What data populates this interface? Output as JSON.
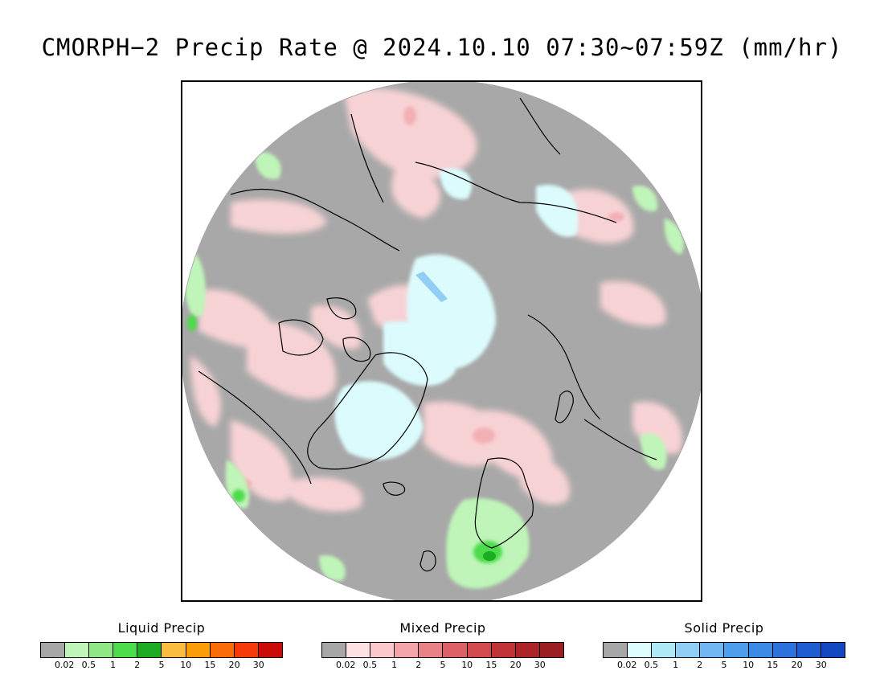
{
  "title": "CMORPH−2 Precip Rate @ 2024.10.10 07:30~07:59Z (mm/hr)",
  "map": {
    "projection": "north-polar-stereographic",
    "background_no_precip_color": "#a8a8a8",
    "coastline_color": "#000000"
  },
  "legends": [
    {
      "name": "Liquid Precip",
      "ticks": [
        "0.02",
        "0.5",
        "1",
        "2",
        "5",
        "10",
        "15",
        "20",
        "30"
      ],
      "colors": [
        "#a6a6a6",
        "#bff5b8",
        "#8fe883",
        "#4cdc4c",
        "#1eab24",
        "#fbbd3f",
        "#fb9d08",
        "#fa6c08",
        "#f63a0a",
        "#cb0a0a"
      ]
    },
    {
      "name": "Mixed Precip",
      "ticks": [
        "0.02",
        "0.5",
        "1",
        "2",
        "5",
        "10",
        "15",
        "20",
        "30"
      ],
      "colors": [
        "#a6a6a6",
        "#fde1e3",
        "#fbc8cb",
        "#f2a4a8",
        "#e88286",
        "#dc6166",
        "#d04a4e",
        "#c03438",
        "#ac2328",
        "#9b1f22"
      ]
    },
    {
      "name": "Solid Precip",
      "ticks": [
        "0.02",
        "0.5",
        "1",
        "2",
        "5",
        "10",
        "15",
        "20",
        "30"
      ],
      "colors": [
        "#a6a6a6",
        "#dcfcfd",
        "#aee9f8",
        "#90cef5",
        "#72b7f1",
        "#4d9fed",
        "#3b8ae6",
        "#2c71dc",
        "#1e5cd1",
        "#1448c0"
      ]
    }
  ]
}
